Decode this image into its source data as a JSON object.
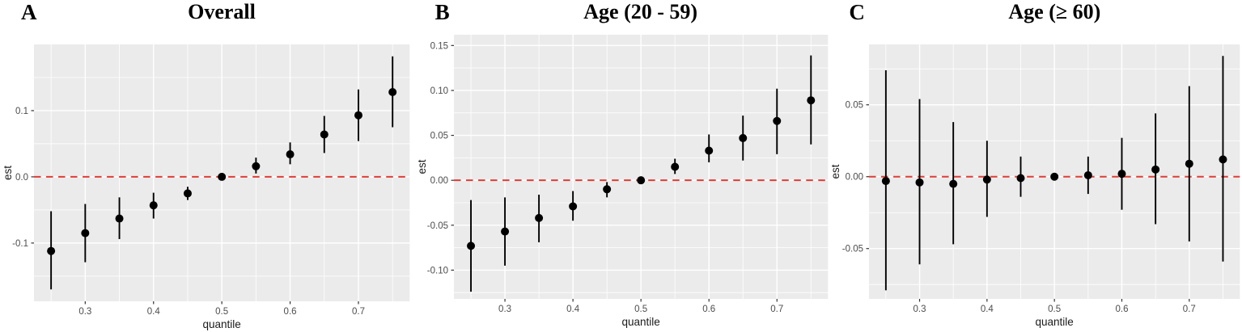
{
  "figure": {
    "background": "#ffffff",
    "panel_background": "#ebebeb",
    "grid_color": "#ffffff",
    "point_color": "#000000",
    "errorbar_color": "#000000",
    "refline_color": "#e23c34",
    "tick_mark_color": "#333333",
    "tick_label_color": "#4d4d4d",
    "axis_title_color": "#1a1a1a"
  },
  "chart_data": [
    {
      "type": "scatter",
      "panel_label": "A",
      "title": "Overall",
      "xlabel": "quantile",
      "ylabel": "est",
      "ref_line_y": 0,
      "x": [
        0.25,
        0.3,
        0.35,
        0.4,
        0.45,
        0.5,
        0.55,
        0.6,
        0.65,
        0.7,
        0.75
      ],
      "est": [
        -0.112,
        -0.085,
        -0.063,
        -0.043,
        -0.025,
        0.0,
        0.016,
        0.034,
        0.064,
        0.093,
        0.128
      ],
      "ci_low": [
        -0.17,
        -0.129,
        -0.094,
        -0.063,
        -0.035,
        -0.002,
        0.005,
        0.019,
        0.036,
        0.054,
        0.075
      ],
      "ci_high": [
        -0.052,
        -0.041,
        -0.031,
        -0.024,
        -0.015,
        0.002,
        0.029,
        0.052,
        0.092,
        0.132,
        0.182
      ],
      "xlim": [
        0.225,
        0.775
      ],
      "ylim": [
        -0.188,
        0.2
      ],
      "xticks": {
        "values": [
          0.3,
          0.4,
          0.5,
          0.6,
          0.7
        ],
        "labels": [
          "0.3",
          "0.4",
          "0.5",
          "0.6",
          "0.7"
        ],
        "minor": [
          0.25,
          0.35,
          0.45,
          0.55,
          0.65,
          0.75
        ]
      },
      "yticks": {
        "values": [
          -0.1,
          0.0,
          0.1
        ],
        "labels": [
          "-0.1",
          "0.0",
          "0.1"
        ],
        "minor": [
          -0.15,
          -0.05,
          0.05,
          0.15
        ]
      },
      "grid": "on",
      "legend": "none"
    },
    {
      "type": "scatter",
      "panel_label": "B",
      "title": "Age (20 - 59)",
      "xlabel": "quantile",
      "ylabel": "est",
      "ref_line_y": 0,
      "x": [
        0.25,
        0.3,
        0.35,
        0.4,
        0.45,
        0.5,
        0.55,
        0.6,
        0.65,
        0.7,
        0.75
      ],
      "est": [
        -0.073,
        -0.057,
        -0.042,
        -0.029,
        -0.01,
        0.0,
        0.015,
        0.033,
        0.047,
        0.066,
        0.089
      ],
      "ci_low": [
        -0.124,
        -0.095,
        -0.069,
        -0.045,
        -0.019,
        -0.002,
        0.007,
        0.02,
        0.022,
        0.029,
        0.04
      ],
      "ci_high": [
        -0.022,
        -0.019,
        -0.016,
        -0.012,
        -0.002,
        0.002,
        0.024,
        0.051,
        0.072,
        0.102,
        0.139
      ],
      "xlim": [
        0.225,
        0.775
      ],
      "ylim": [
        -0.132,
        0.162
      ],
      "xticks": {
        "values": [
          0.3,
          0.4,
          0.5,
          0.6,
          0.7
        ],
        "labels": [
          "0.3",
          "0.4",
          "0.5",
          "0.6",
          "0.7"
        ],
        "minor": [
          0.25,
          0.35,
          0.45,
          0.55,
          0.65,
          0.75
        ]
      },
      "yticks": {
        "values": [
          -0.1,
          -0.05,
          0.0,
          0.05,
          0.1,
          0.15
        ],
        "labels": [
          "-0.10",
          "-0.05",
          "0.00",
          "0.05",
          "0.10",
          "0.15"
        ],
        "minor": [
          -0.125,
          -0.075,
          -0.025,
          0.025,
          0.075,
          0.125
        ]
      },
      "grid": "on",
      "legend": "none"
    },
    {
      "type": "scatter",
      "panel_label": "C",
      "title": "Age (≥ 60)",
      "xlabel": "quantile",
      "ylabel": "est",
      "ref_line_y": 0,
      "x": [
        0.25,
        0.3,
        0.35,
        0.4,
        0.45,
        0.5,
        0.55,
        0.6,
        0.65,
        0.7,
        0.75
      ],
      "est": [
        -0.003,
        -0.004,
        -0.005,
        -0.002,
        -0.001,
        0.0,
        0.001,
        0.002,
        0.005,
        0.009,
        0.012
      ],
      "ci_low": [
        -0.079,
        -0.061,
        -0.047,
        -0.028,
        -0.014,
        -0.001,
        -0.012,
        -0.023,
        -0.033,
        -0.045,
        -0.059
      ],
      "ci_high": [
        0.074,
        0.054,
        0.038,
        0.025,
        0.014,
        0.001,
        0.014,
        0.027,
        0.044,
        0.063,
        0.084
      ],
      "xlim": [
        0.225,
        0.775
      ],
      "ylim": [
        -0.085,
        0.092
      ],
      "xticks": {
        "values": [
          0.3,
          0.4,
          0.5,
          0.6,
          0.7
        ],
        "labels": [
          "0.3",
          "0.4",
          "0.5",
          "0.6",
          "0.7"
        ],
        "minor": [
          0.25,
          0.35,
          0.45,
          0.55,
          0.65,
          0.75
        ]
      },
      "yticks": {
        "values": [
          -0.05,
          0.0,
          0.05
        ],
        "labels": [
          "-0.05",
          "0.00",
          "0.05"
        ],
        "minor": [
          -0.075,
          -0.025,
          0.025,
          0.075
        ]
      },
      "grid": "on",
      "legend": "none"
    }
  ]
}
